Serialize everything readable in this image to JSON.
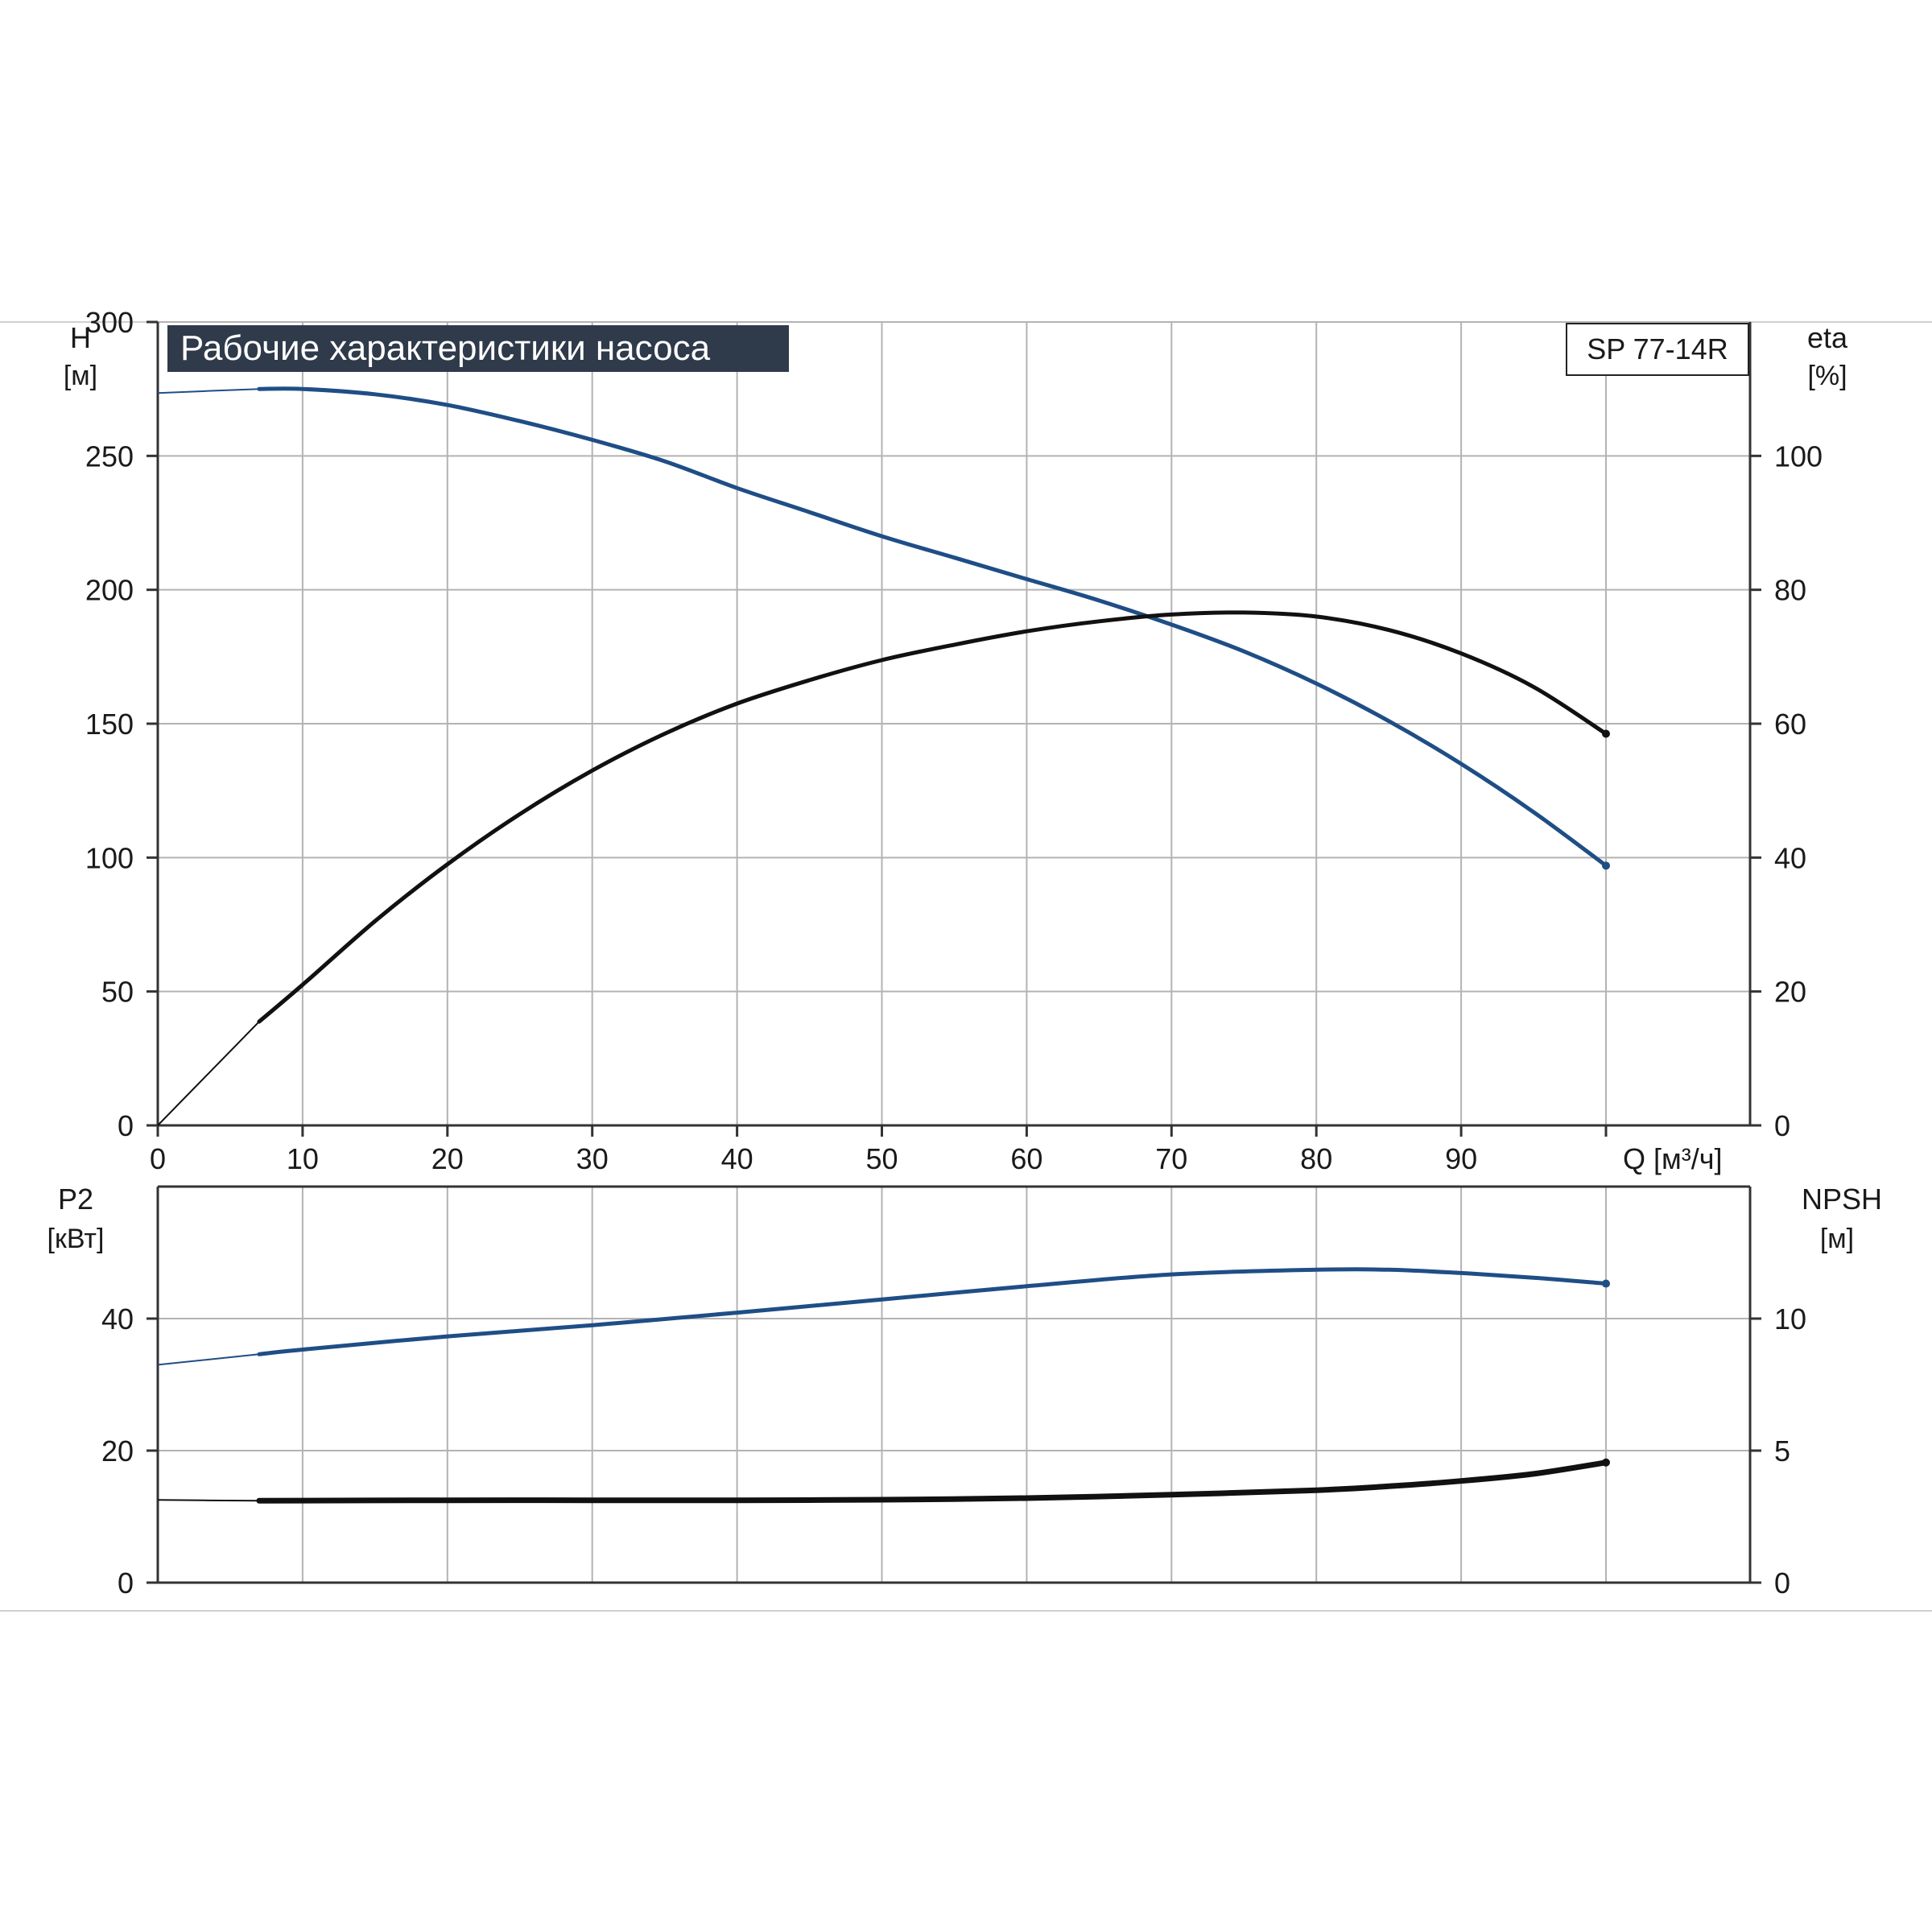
{
  "title_badge": "Рабочие характеристики насоса",
  "model_label": "SP 77-14R",
  "colors": {
    "blue_curve": "#1f4e86",
    "black_curve": "#111111",
    "grid": "#b3b3b3",
    "title_bg": "#2f3a4a",
    "title_text": "#ffffff"
  },
  "chart_data": [
    {
      "type": "line",
      "name": "upper-chart",
      "x_axis": {
        "label": "Q [м³/ч]",
        "range": [
          0,
          100
        ],
        "ticks": [
          0,
          10,
          20,
          30,
          40,
          50,
          60,
          70,
          80,
          90
        ],
        "tick_labels": [
          "0",
          "10",
          "20",
          "30",
          "40",
          "50",
          "60",
          "70",
          "80",
          "90"
        ]
      },
      "y_left": {
        "label_top": "H",
        "label_unit": "[м]",
        "range": [
          0,
          300
        ],
        "ticks": [
          0,
          50,
          100,
          150,
          200,
          250,
          300
        ],
        "tick_labels": [
          "0",
          "50",
          "100",
          "150",
          "200",
          "250",
          "300"
        ]
      },
      "y_right": {
        "label_top": "eta",
        "label_unit": "[%]",
        "range": [
          0,
          120
        ],
        "ticks": [
          0,
          20,
          40,
          60,
          80,
          100
        ],
        "tick_labels": [
          "0",
          "20",
          "40",
          "60",
          "80",
          "100"
        ]
      },
      "grid": true,
      "series": [
        {
          "axis": "left",
          "color": "#1f4e86",
          "thin_points": [
            [
              0,
              273.5
            ],
            [
              7,
              275
            ]
          ],
          "points": [
            [
              7,
              275
            ],
            [
              10,
              275
            ],
            [
              15,
              273
            ],
            [
              20,
              269
            ],
            [
              25,
              263
            ],
            [
              30,
              256
            ],
            [
              35,
              248
            ],
            [
              40,
              238
            ],
            [
              45,
              229
            ],
            [
              50,
              220
            ],
            [
              55,
              212
            ],
            [
              60,
              204
            ],
            [
              65,
              196
            ],
            [
              70,
              187
            ],
            [
              75,
              177
            ],
            [
              80,
              165
            ],
            [
              85,
              151
            ],
            [
              90,
              135
            ],
            [
              95,
              117
            ],
            [
              100,
              97
            ]
          ]
        },
        {
          "axis": "right",
          "color": "#111111",
          "thin_points": [
            [
              0,
              0
            ],
            [
              7,
              15.5
            ]
          ],
          "points": [
            [
              7,
              15.5
            ],
            [
              10,
              21
            ],
            [
              15,
              30.5
            ],
            [
              20,
              39
            ],
            [
              25,
              46.5
            ],
            [
              30,
              53
            ],
            [
              35,
              58.5
            ],
            [
              40,
              63
            ],
            [
              45,
              66.5
            ],
            [
              50,
              69.5
            ],
            [
              55,
              71.8
            ],
            [
              60,
              73.8
            ],
            [
              65,
              75.3
            ],
            [
              70,
              76.3
            ],
            [
              75,
              76.6
            ],
            [
              80,
              76
            ],
            [
              85,
              74
            ],
            [
              90,
              70.5
            ],
            [
              95,
              65.5
            ],
            [
              100,
              58.5
            ]
          ]
        }
      ]
    },
    {
      "type": "line",
      "name": "lower-chart",
      "x_axis": {
        "range": [
          0,
          100
        ]
      },
      "y_left": {
        "label_top": "P2",
        "label_unit": "[кВт]",
        "range": [
          0,
          60
        ],
        "ticks": [
          0,
          20,
          40
        ],
        "tick_labels": [
          "0",
          "20",
          "40"
        ]
      },
      "y_right": {
        "label_top": "NPSH",
        "label_unit": "[м]",
        "range": [
          0,
          15
        ],
        "ticks": [
          0,
          5,
          10
        ],
        "tick_labels": [
          "0",
          "5",
          "10"
        ]
      },
      "grid": true,
      "series": [
        {
          "axis": "left",
          "color": "#1f4e86",
          "thin_points": [
            [
              0,
              33
            ],
            [
              7,
              34.6
            ]
          ],
          "points": [
            [
              7,
              34.6
            ],
            [
              10,
              35.3
            ],
            [
              20,
              37.3
            ],
            [
              30,
              39
            ],
            [
              40,
              40.9
            ],
            [
              50,
              42.9
            ],
            [
              60,
              44.9
            ],
            [
              70,
              46.7
            ],
            [
              80,
              47.4
            ],
            [
              85,
              47.4
            ],
            [
              90,
              46.9
            ],
            [
              95,
              46.2
            ],
            [
              100,
              45.3
            ]
          ]
        },
        {
          "axis": "right",
          "color": "#111111",
          "thin_points": [
            [
              0,
              3.13
            ],
            [
              7,
              3.1
            ]
          ],
          "points": [
            [
              7,
              3.1
            ],
            [
              20,
              3.12
            ],
            [
              30,
              3.12
            ],
            [
              40,
              3.12
            ],
            [
              50,
              3.14
            ],
            [
              60,
              3.2
            ],
            [
              70,
              3.33
            ],
            [
              80,
              3.5
            ],
            [
              85,
              3.65
            ],
            [
              90,
              3.85
            ],
            [
              95,
              4.12
            ],
            [
              100,
              4.55
            ]
          ]
        }
      ]
    }
  ]
}
